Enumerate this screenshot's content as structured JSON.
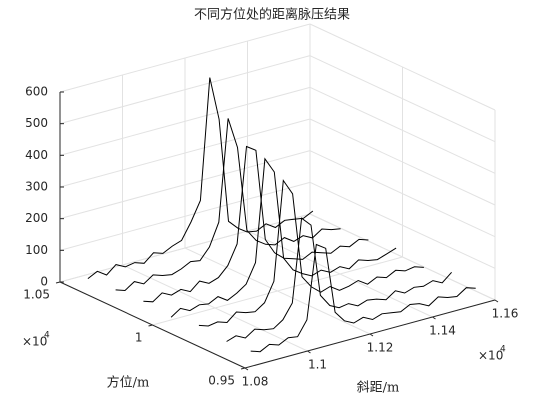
{
  "chart_data": {
    "type": "line3d",
    "title": "不同方位处的距离脉压结果",
    "xlabel": "斜距/m",
    "ylabel": "方位/m",
    "x_multiplier": {
      "base": "×10",
      "power": "4"
    },
    "y_multiplier": {
      "base": "×10",
      "power": "4"
    },
    "xlim": [
      1.08,
      1.16
    ],
    "xticks": [
      1.08,
      1.1,
      1.12,
      1.14,
      1.16
    ],
    "ylim": [
      0.95,
      1.05
    ],
    "yticks": [
      0.95,
      1,
      1.05
    ],
    "zlim": [
      0,
      600
    ],
    "zticks": [
      0,
      100,
      200,
      300,
      400,
      500,
      600
    ],
    "grid": true,
    "color": "#000000",
    "x": [
      1.083,
      1.086,
      1.089,
      1.092,
      1.095,
      1.098,
      1.101,
      1.104,
      1.107,
      1.11,
      1.113,
      1.116,
      1.119,
      1.122,
      1.125,
      1.128,
      1.131,
      1.134,
      1.137,
      1.14,
      1.143,
      1.146,
      1.149,
      1.152,
      1.155
    ],
    "series": [
      {
        "azimuth": 1.04,
        "values": [
          30,
          45,
          25,
          50,
          35,
          40,
          30,
          55,
          45,
          60,
          70,
          120,
          180,
          560,
          420,
          90,
          60,
          40,
          35,
          50,
          30,
          45,
          40,
          35,
          50
        ]
      },
      {
        "azimuth": 1.025,
        "values": [
          35,
          25,
          45,
          30,
          50,
          40,
          35,
          45,
          60,
          55,
          90,
          160,
          480,
          380,
          110,
          70,
          50,
          40,
          55,
          35,
          45,
          30,
          50,
          40,
          35
        ]
      },
      {
        "azimuth": 1.01,
        "values": [
          40,
          30,
          50,
          35,
          45,
          30,
          55,
          40,
          50,
          80,
          140,
          440,
          420,
          130,
          80,
          55,
          45,
          35,
          50,
          40,
          30,
          45,
          35,
          50,
          40
        ]
      },
      {
        "azimuth": 0.995,
        "values": [
          30,
          50,
          35,
          45,
          40,
          55,
          35,
          50,
          70,
          130,
          450,
          400,
          120,
          75,
          55,
          40,
          50,
          35,
          45,
          30,
          50,
          40,
          35,
          45,
          55
        ]
      },
      {
        "azimuth": 0.98,
        "values": [
          45,
          35,
          40,
          30,
          55,
          45,
          40,
          60,
          120,
          430,
          380,
          110,
          70,
          45,
          55,
          35,
          40,
          50,
          30,
          45,
          35,
          50,
          40,
          45,
          35
        ]
      },
      {
        "azimuth": 0.965,
        "values": [
          35,
          45,
          30,
          50,
          40,
          35,
          55,
          100,
          360,
          330,
          100,
          60,
          45,
          50,
          35,
          45,
          40,
          30,
          50,
          35,
          45,
          40,
          50,
          35,
          60
        ]
      },
      {
        "azimuth": 0.952,
        "values": [
          40,
          30,
          45,
          35,
          50,
          45,
          90,
          320,
          300,
          90,
          55,
          40,
          50,
          35,
          45,
          40,
          35,
          50,
          45,
          30,
          50,
          40,
          35,
          55,
          45
        ]
      }
    ]
  }
}
